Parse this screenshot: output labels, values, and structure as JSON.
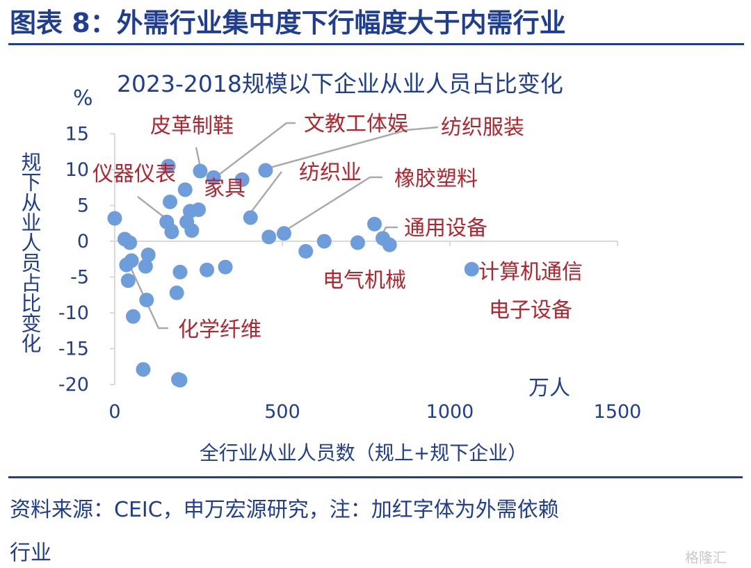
{
  "header": {
    "title": "图表 8：外需行业集中度下行幅度大于内需行业"
  },
  "source": {
    "line1": "资料来源：CEIC，申万宏源研究，注：加红字体为外需依赖",
    "line2": "行业"
  },
  "watermark": "格隆汇",
  "colors": {
    "point": "#6d9ddb",
    "text": "#1f3e93",
    "annotation": "#b5242c",
    "leader": "#aaaaaa",
    "axis": "#d9d9d9"
  },
  "chart_data": {
    "type": "scatter",
    "title": "2023-2018规模以下企业从业人员占比变化",
    "xlabel": "全行业从业人员数（规上+规下企业）",
    "ylabel": "规下从业人员占比变化",
    "x_unit": "万人",
    "y_unit": "%",
    "xlim": [
      0,
      1500
    ],
    "ylim": [
      -20,
      15
    ],
    "xticks": [
      "0",
      "500",
      "1000",
      "1500"
    ],
    "yticks": [
      "15",
      "10",
      "5",
      "0",
      "-5",
      "-10",
      "-15",
      "-20"
    ],
    "grid": false,
    "legend": "none",
    "x": [
      0,
      30,
      45,
      35,
      40,
      55,
      95,
      92,
      100,
      50,
      160,
      165,
      170,
      215,
      225,
      210,
      155,
      255,
      250,
      230,
      295,
      275,
      195,
      185,
      330,
      380,
      405,
      460,
      450,
      505,
      570,
      625,
      725,
      775,
      800,
      820,
      1065,
      85,
      195,
      190
    ],
    "y": [
      3.2,
      0.3,
      -0.2,
      -3.3,
      -5.5,
      -10.5,
      -8.2,
      -3.5,
      -1.9,
      -2.7,
      10.5,
      5.5,
      1.3,
      2.7,
      4.2,
      7.2,
      2.7,
      9.8,
      4.4,
      1.5,
      8.9,
      -4,
      -4.3,
      -7.2,
      -3.6,
      8.6,
      3.3,
      0.6,
      9.9,
      1.1,
      -1.4,
      0,
      -0.2,
      2.4,
      0.4,
      -0.5,
      -3.9,
      -17.9,
      -19.4,
      -19.3
    ],
    "annotations": [
      {
        "label": "皮革制鞋",
        "x": 255,
        "y": 9.8
      },
      {
        "label": "文教工体娱",
        "x": 295,
        "y": 8.9
      },
      {
        "label": "纺织服装",
        "x": 460,
        "y": 9.9
      },
      {
        "label": "仪器仪表",
        "x": 160,
        "y": 1.3
      },
      {
        "label": "家具",
        "x": null,
        "y": null
      },
      {
        "label": "纺织业",
        "x": 380,
        "y": 3.3
      },
      {
        "label": "橡胶塑料",
        "x": 505,
        "y": 1.1
      },
      {
        "label": "通用设备",
        "x": 800,
        "y": 0.4
      },
      {
        "label": "电气机械",
        "x": null,
        "y": null
      },
      {
        "label": "计算机通信",
        "x": 1065,
        "y": -3.9
      },
      {
        "label": "电子设备",
        "x": null,
        "y": null
      },
      {
        "label": "化学纤维",
        "x": 45,
        "y": -3.3
      }
    ]
  }
}
